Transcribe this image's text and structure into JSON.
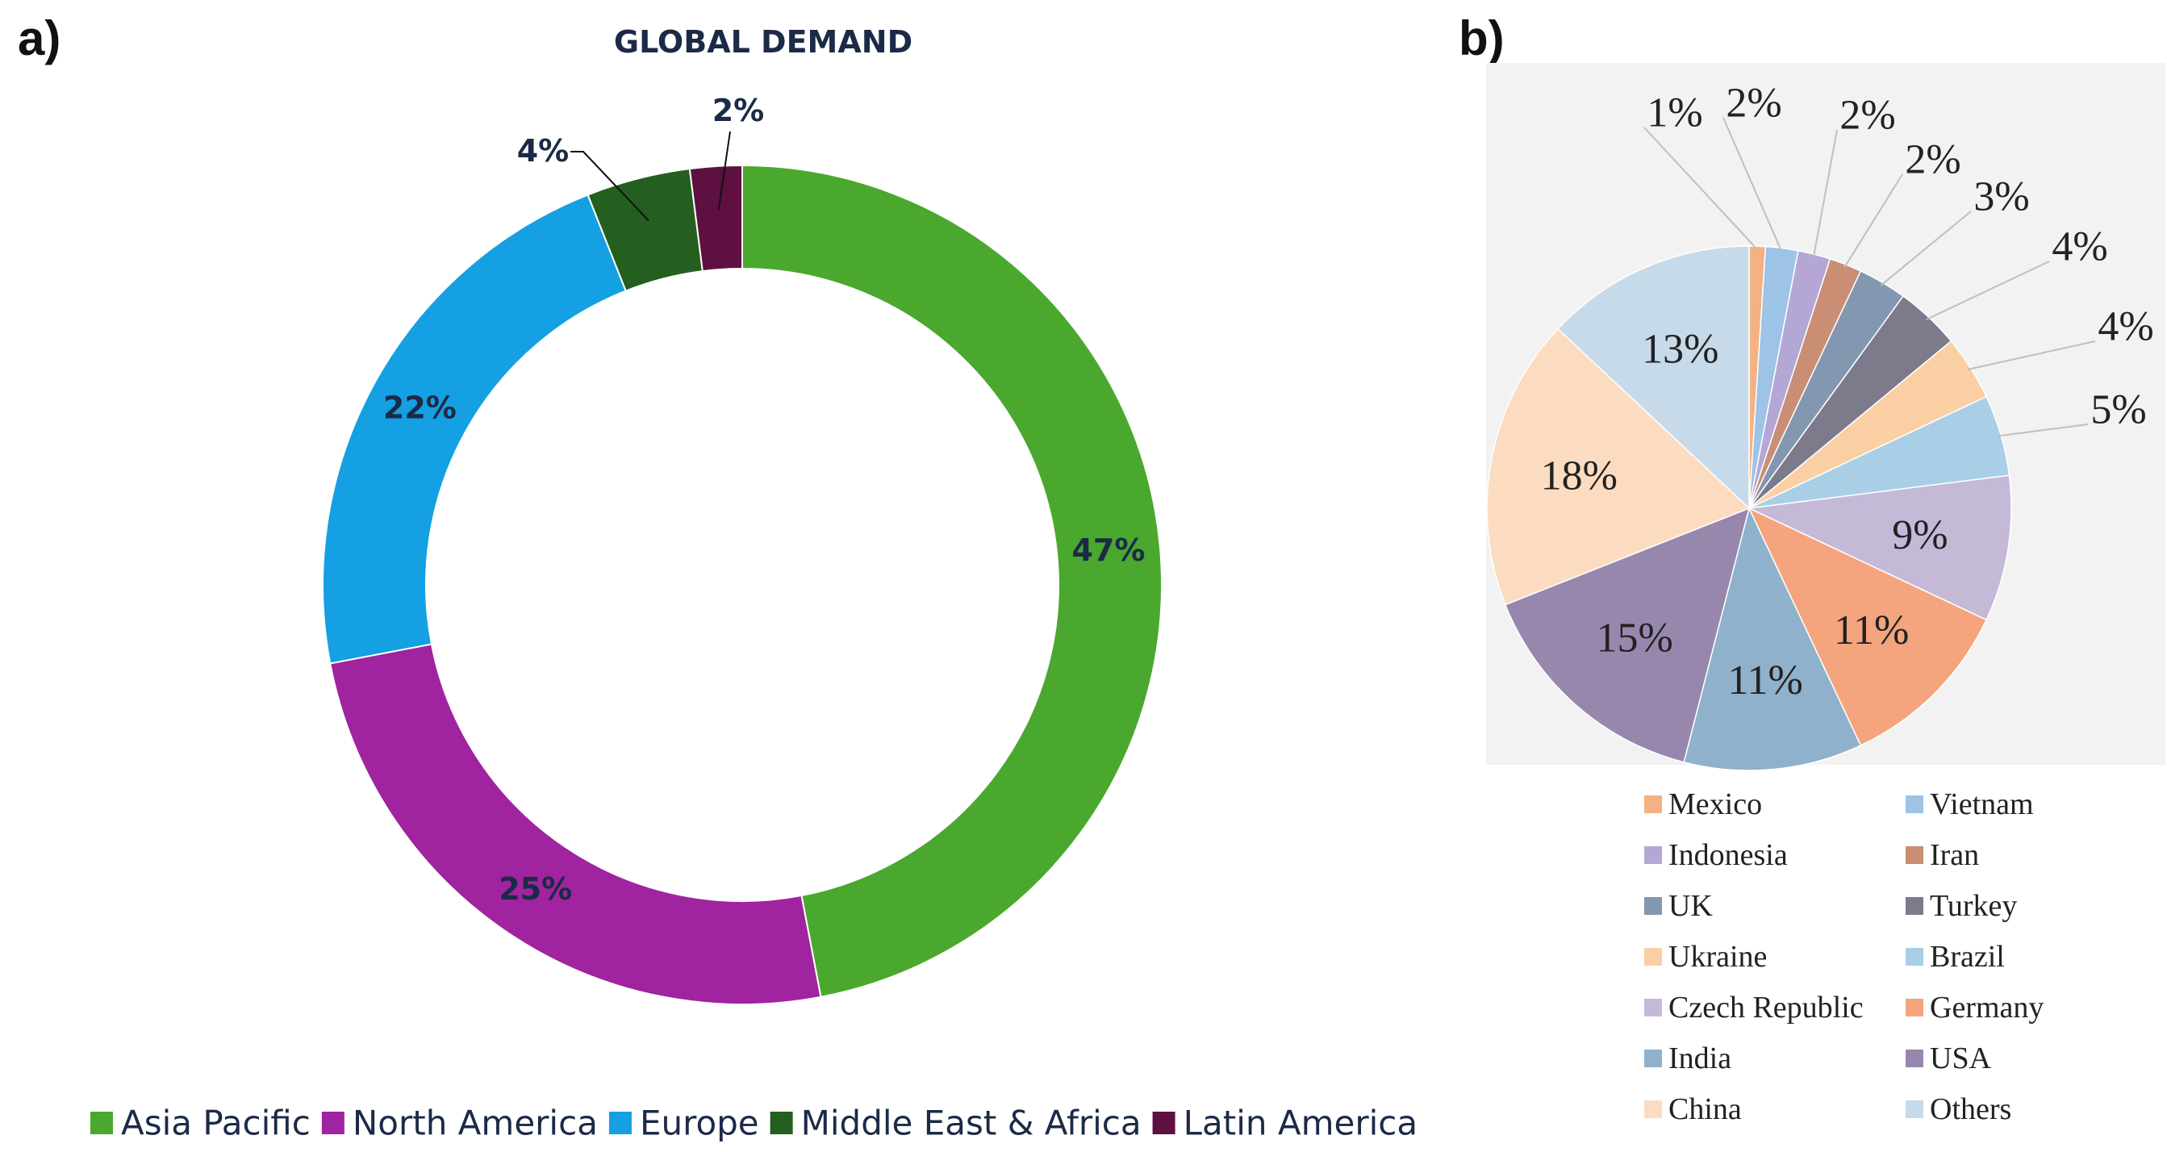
{
  "panel_a_label": "a)",
  "panel_b_label": "b)",
  "chart_data": [
    {
      "type": "pie",
      "variant": "donut",
      "title": "GLOBAL DEMAND",
      "categories": [
        "Asia Pacific",
        "North America",
        "Europe",
        "Middle East & Africa",
        "Latin America"
      ],
      "values": [
        47,
        25,
        22,
        4,
        2
      ],
      "labels": [
        "47%",
        "25%",
        "22%",
        "4%",
        "2%"
      ],
      "colors": [
        "#4ba82e",
        "#a0239f",
        "#14a0e2",
        "#245f1f",
        "#5e1040"
      ],
      "legend_position": "bottom",
      "start": "12 o'clock, clockwise"
    },
    {
      "type": "pie",
      "title": "",
      "categories": [
        "Mexico",
        "Vietnam",
        "Indonesia",
        "Iran",
        "UK",
        "Turkey",
        "Ukraine",
        "Brazil",
        "Czech Republic",
        "Germany",
        "India",
        "USA",
        "China",
        "Others"
      ],
      "values": [
        1,
        2,
        2,
        2,
        3,
        4,
        4,
        5,
        9,
        11,
        11,
        15,
        18,
        13
      ],
      "labels": [
        "1%",
        "2%",
        "2%",
        "2%",
        "3%",
        "4%",
        "4%",
        "5%",
        "9%",
        "11%",
        "11%",
        "15%",
        "18%",
        "13%"
      ],
      "colors": [
        "#f4b183",
        "#9dc3e6",
        "#b4a7d6",
        "#c98e73",
        "#8497b0",
        "#7d7a8c",
        "#fbcfa4",
        "#a9cfe6",
        "#c5b9d8",
        "#f4a57e",
        "#8fb1cc",
        "#9887ad",
        "#fcdcc0",
        "#c6daea"
      ],
      "legend_position": "bottom",
      "start": "12 o'clock, clockwise"
    }
  ]
}
